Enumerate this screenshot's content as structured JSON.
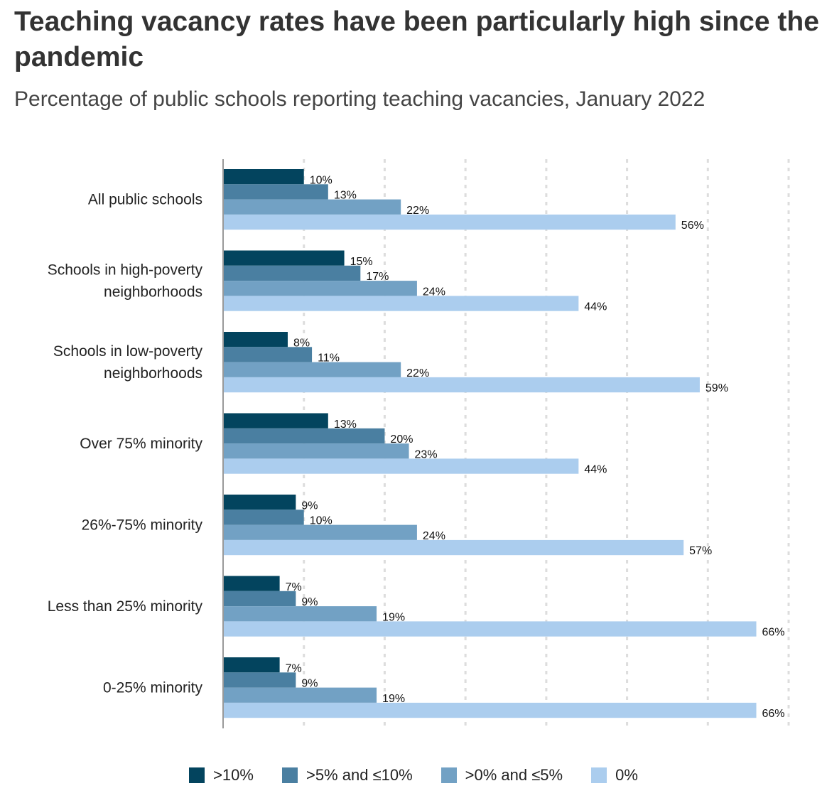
{
  "title": "Teaching vacancy rates have been particularly high since the pandemic",
  "subtitle": "Percentage of public schools reporting teaching vacancies, January 2022",
  "chart_data": {
    "type": "bar",
    "orientation": "horizontal",
    "title": "Teaching vacancy rates have been particularly high since the pandemic",
    "subtitle": "Percentage of public schools reporting teaching vacancies, January 2022",
    "categories": [
      [
        "All public schools"
      ],
      [
        "Schools in high-poverty",
        "neighborhoods"
      ],
      [
        "Schools in low-poverty",
        "neighborhoods"
      ],
      [
        "Over 75% minority"
      ],
      [
        "26%-75% minority"
      ],
      [
        "Less than 25% minority"
      ],
      [
        "0-25% minority"
      ]
    ],
    "series": [
      {
        "name": ">10%",
        "color": "#03445e",
        "values": [
          10,
          15,
          8,
          13,
          9,
          7,
          7
        ]
      },
      {
        "name": ">5% and ≤10%",
        "color": "#4a7fa1",
        "values": [
          13,
          17,
          11,
          20,
          10,
          9,
          9
        ]
      },
      {
        "name": ">0% and ≤5%",
        "color": "#72a1c4",
        "values": [
          22,
          24,
          22,
          23,
          24,
          19,
          19
        ]
      },
      {
        "name": "0%",
        "color": "#abcdee",
        "values": [
          56,
          44,
          59,
          44,
          57,
          66,
          66
        ]
      }
    ],
    "value_suffix": "%",
    "xlim": [
      0,
      70
    ],
    "grid": "vertical dotted",
    "legend": "bottom-center"
  }
}
